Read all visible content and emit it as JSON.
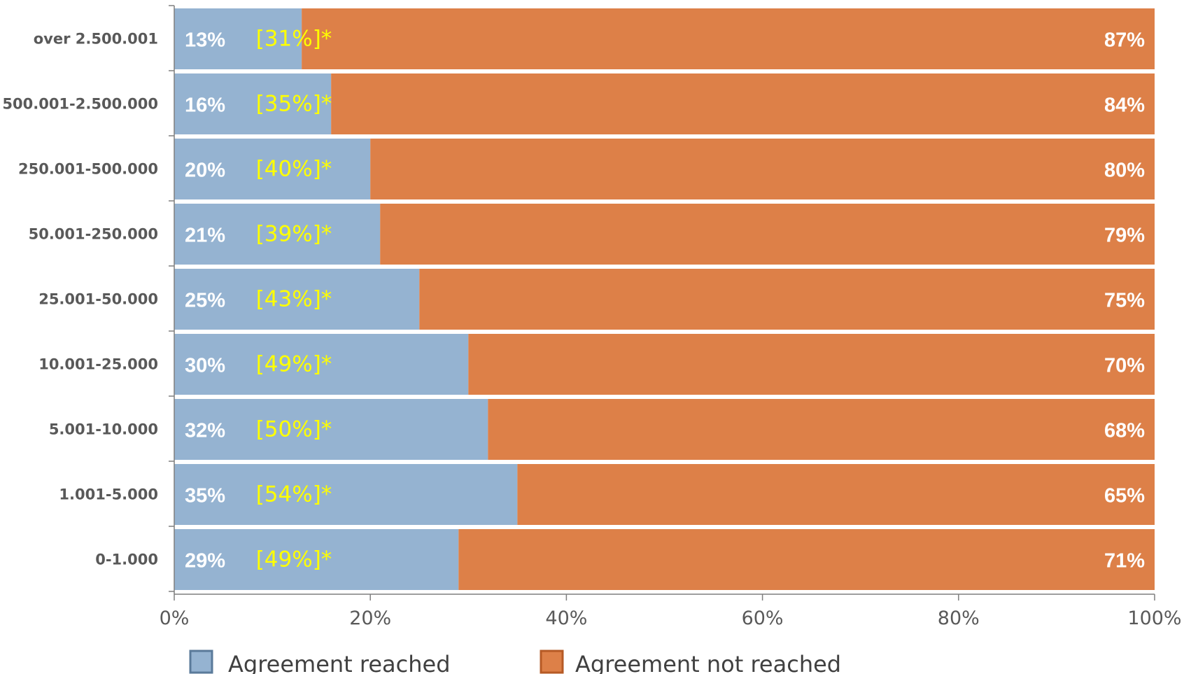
{
  "chart_data": {
    "type": "bar",
    "orientation": "horizontal",
    "stacked": "percent",
    "categories": [
      "over 2.500.001",
      "500.001-2.500.000",
      "250.001-500.000",
      "50.001-250.000",
      "25.001-50.000",
      "10.001-25.000",
      "5.001-10.000",
      "1.001-5.000",
      "0-1.000"
    ],
    "series": [
      {
        "name": "Agreement reached",
        "color": "#95b3d1",
        "values": [
          13,
          16,
          20,
          21,
          25,
          30,
          32,
          35,
          29
        ],
        "labels": [
          "13%",
          "16%",
          "20%",
          "21%",
          "25%",
          "30%",
          "32%",
          "35%",
          "29%"
        ]
      },
      {
        "name": "Agreement not reached",
        "color": "#dd8048",
        "values": [
          87,
          84,
          80,
          79,
          75,
          70,
          68,
          65,
          71
        ],
        "labels": [
          "87%",
          "84%",
          "80%",
          "79%",
          "75%",
          "70%",
          "68%",
          "65%",
          "71%"
        ]
      }
    ],
    "annotations": [
      "[31%]*",
      "[35%]*",
      "[40%]*",
      "[39%]*",
      "[43%]*",
      "[49%]*",
      "[50%]*",
      "[54%]*",
      "[49%]*"
    ],
    "annotation_color": "#ffff00",
    "xlim": [
      0,
      100
    ],
    "xticks": [
      "0%",
      "20%",
      "40%",
      "60%",
      "80%",
      "100%"
    ],
    "xlabel": "",
    "ylabel": "",
    "title": "",
    "grid": false,
    "legend_position": "bottom"
  }
}
